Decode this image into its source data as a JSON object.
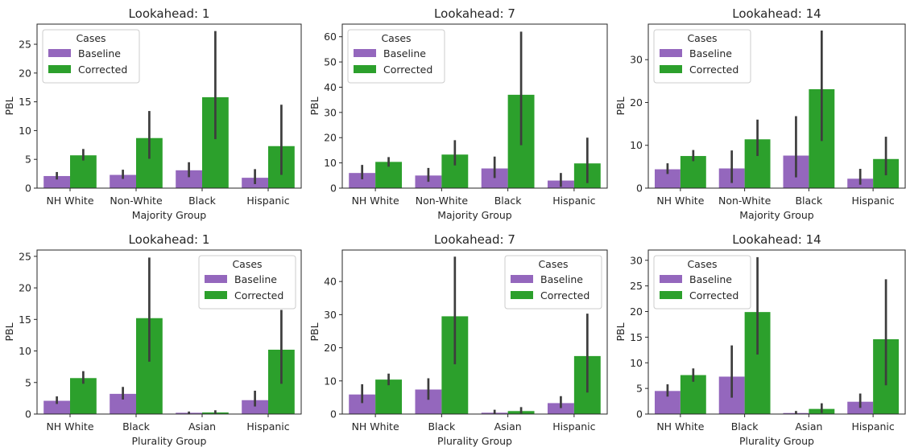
{
  "colors": {
    "baseline": "#9467bd",
    "corrected": "#2ca02c",
    "error_bar": "#3d3d3d",
    "axis": "#262626"
  },
  "chart_data": [
    {
      "type": "bar",
      "title": "Lookahead: 1",
      "xlabel": "Majority Group",
      "ylabel": "PBL",
      "categories": [
        "NH White",
        "Non-White",
        "Black",
        "Hispanic"
      ],
      "ylim": [
        0,
        28.5
      ],
      "yticks": [
        0,
        5,
        10,
        15,
        20,
        25
      ],
      "legend": {
        "title": "Cases",
        "placement": "upper-left"
      },
      "series": [
        {
          "name": "Baseline",
          "values": [
            2.1,
            2.3,
            3.1,
            1.8
          ],
          "err_low": [
            1.5,
            1.6,
            1.9,
            0.7
          ],
          "err_high": [
            2.8,
            3.2,
            4.5,
            3.3
          ]
        },
        {
          "name": "Corrected",
          "values": [
            5.7,
            8.7,
            15.8,
            7.3
          ],
          "err_low": [
            4.8,
            5.1,
            8.5,
            2.3
          ],
          "err_high": [
            6.8,
            13.4,
            27.3,
            14.5
          ]
        }
      ]
    },
    {
      "type": "bar",
      "title": "Lookahead: 7",
      "xlabel": "Majority Group",
      "ylabel": "PBL",
      "categories": [
        "NH White",
        "Non-White",
        "Black",
        "Hispanic"
      ],
      "ylim": [
        0,
        65
      ],
      "yticks": [
        0,
        10,
        20,
        30,
        40,
        50,
        60
      ],
      "legend": {
        "title": "Cases",
        "placement": "upper-left"
      },
      "series": [
        {
          "name": "Baseline",
          "values": [
            6.0,
            5.0,
            7.8,
            3.0
          ],
          "err_low": [
            3.5,
            2.5,
            4.0,
            0.5
          ],
          "err_high": [
            9.2,
            8.0,
            12.5,
            6.0
          ]
        },
        {
          "name": "Corrected",
          "values": [
            10.4,
            13.3,
            37.0,
            9.8
          ],
          "err_low": [
            8.5,
            9.0,
            17.0,
            2.0
          ],
          "err_high": [
            12.3,
            19.0,
            62.0,
            20.0
          ]
        }
      ]
    },
    {
      "type": "bar",
      "title": "Lookahead: 14",
      "xlabel": "Majority Group",
      "ylabel": "PBL",
      "categories": [
        "NH White",
        "Non-White",
        "Black",
        "Hispanic"
      ],
      "ylim": [
        0,
        38.3
      ],
      "yticks": [
        0,
        10,
        20,
        30
      ],
      "legend": {
        "title": "Cases",
        "placement": "upper-left"
      },
      "series": [
        {
          "name": "Baseline",
          "values": [
            4.4,
            4.6,
            7.6,
            2.2
          ],
          "err_low": [
            3.3,
            1.2,
            2.5,
            0.8
          ],
          "err_high": [
            5.8,
            8.8,
            16.8,
            4.5
          ]
        },
        {
          "name": "Corrected",
          "values": [
            7.5,
            11.4,
            23.1,
            6.8
          ],
          "err_low": [
            6.3,
            7.5,
            11.0,
            3.0
          ],
          "err_high": [
            8.9,
            16.0,
            36.8,
            12.0
          ]
        }
      ]
    },
    {
      "type": "bar",
      "title": "Lookahead: 1",
      "xlabel": "Plurality Group",
      "ylabel": "PBL",
      "categories": [
        "NH White",
        "Black",
        "Asian",
        "Hispanic"
      ],
      "ylim": [
        0,
        26
      ],
      "yticks": [
        0,
        5,
        10,
        15,
        20,
        25
      ],
      "legend": {
        "title": "Cases",
        "placement": "upper-right"
      },
      "series": [
        {
          "name": "Baseline",
          "values": [
            2.1,
            3.2,
            0.2,
            2.2
          ],
          "err_low": [
            1.6,
            2.3,
            0.05,
            1.2
          ],
          "err_high": [
            2.8,
            4.3,
            0.4,
            3.7
          ]
        },
        {
          "name": "Corrected",
          "values": [
            5.7,
            15.2,
            0.25,
            10.2
          ],
          "err_low": [
            4.8,
            8.3,
            0.05,
            4.8
          ],
          "err_high": [
            6.8,
            24.8,
            0.6,
            16.5
          ]
        }
      ]
    },
    {
      "type": "bar",
      "title": "Lookahead: 7",
      "xlabel": "Plurality Group",
      "ylabel": "PBL",
      "categories": [
        "NH White",
        "Black",
        "Asian",
        "Hispanic"
      ],
      "ylim": [
        0,
        49.5
      ],
      "yticks": [
        0,
        10,
        20,
        30,
        40
      ],
      "legend": {
        "title": "Cases",
        "placement": "upper-right"
      },
      "series": [
        {
          "name": "Baseline",
          "values": [
            5.9,
            7.4,
            0.4,
            3.3
          ],
          "err_low": [
            3.3,
            4.3,
            0.05,
            1.8
          ],
          "err_high": [
            9.0,
            10.8,
            1.3,
            5.4
          ]
        },
        {
          "name": "Corrected",
          "values": [
            10.4,
            29.5,
            0.9,
            17.5
          ],
          "err_low": [
            8.7,
            15.0,
            0.2,
            6.5
          ],
          "err_high": [
            12.2,
            47.5,
            2.1,
            30.3
          ]
        }
      ]
    },
    {
      "type": "bar",
      "title": "Lookahead: 14",
      "xlabel": "Plurality Group",
      "ylabel": "PBL",
      "categories": [
        "NH White",
        "Black",
        "Asian",
        "Hispanic"
      ],
      "ylim": [
        0,
        32
      ],
      "yticks": [
        0,
        5,
        10,
        15,
        20,
        25,
        30
      ],
      "legend": {
        "title": "Cases",
        "placement": "upper-left"
      },
      "series": [
        {
          "name": "Baseline",
          "values": [
            4.5,
            7.3,
            0.2,
            2.4
          ],
          "err_low": [
            3.4,
            3.2,
            0.05,
            1.2
          ],
          "err_high": [
            5.8,
            13.4,
            0.6,
            4.0
          ]
        },
        {
          "name": "Corrected",
          "values": [
            7.6,
            19.9,
            1.0,
            14.6
          ],
          "err_low": [
            6.3,
            11.6,
            0.2,
            5.6
          ],
          "err_high": [
            8.9,
            30.6,
            2.1,
            26.3
          ]
        }
      ]
    }
  ]
}
